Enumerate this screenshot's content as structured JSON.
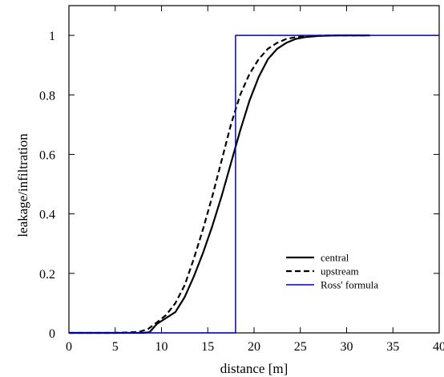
{
  "chart_data": {
    "type": "line",
    "title": "",
    "xlabel": "distance [m]",
    "ylabel": "leakage/infiltration",
    "xlim": [
      0,
      40
    ],
    "ylim": [
      0,
      1.1
    ],
    "xticks": [
      0,
      5,
      10,
      15,
      20,
      25,
      30,
      35,
      40
    ],
    "yticks": [
      0,
      0.2,
      0.4,
      0.6,
      0.8,
      1
    ],
    "xtick_labels": [
      "0",
      "5",
      "10",
      "15",
      "20",
      "25",
      "30",
      "35",
      "40"
    ],
    "ytick_labels": [
      "0",
      "0.2",
      "0.4",
      "0.6",
      "0.8",
      "1"
    ],
    "grid": false,
    "legend_position": "bottom-right",
    "series": [
      {
        "name": "central",
        "color": "#000000",
        "style": "solid",
        "x": [
          0,
          5,
          8,
          8.7,
          9.5,
          10.5,
          11.5,
          12.5,
          13.5,
          14.5,
          15.5,
          16.5,
          17.5,
          18.5,
          19.5,
          20.5,
          21.5,
          22.5,
          23.5,
          24.5,
          25.5,
          27,
          29,
          32.5
        ],
        "y": [
          0.0,
          0.0,
          0.0,
          0.002,
          0.03,
          0.05,
          0.07,
          0.12,
          0.19,
          0.27,
          0.36,
          0.46,
          0.57,
          0.68,
          0.78,
          0.86,
          0.92,
          0.955,
          0.975,
          0.988,
          0.994,
          0.998,
          1.0,
          1.0
        ]
      },
      {
        "name": "upstream",
        "color": "#000000",
        "style": "dashed",
        "x": [
          0,
          5,
          7.5,
          8.5,
          9.5,
          10.5,
          11.5,
          12.5,
          13.5,
          14.5,
          15.5,
          16.5,
          17.5,
          18.5,
          19.5,
          20.5,
          21.5,
          22.5,
          23.5,
          24.5,
          25.5,
          27,
          29,
          32.5
        ],
        "y": [
          0.0,
          0.0,
          0.003,
          0.012,
          0.035,
          0.06,
          0.1,
          0.16,
          0.25,
          0.35,
          0.46,
          0.58,
          0.7,
          0.8,
          0.87,
          0.92,
          0.955,
          0.975,
          0.988,
          0.994,
          0.997,
          0.999,
          1.0,
          1.0
        ]
      },
      {
        "name": "Ross' formula",
        "color": "#0000cc",
        "style": "solid",
        "x": [
          0,
          18,
          18,
          40
        ],
        "y": [
          0,
          0,
          1,
          1
        ]
      }
    ]
  }
}
